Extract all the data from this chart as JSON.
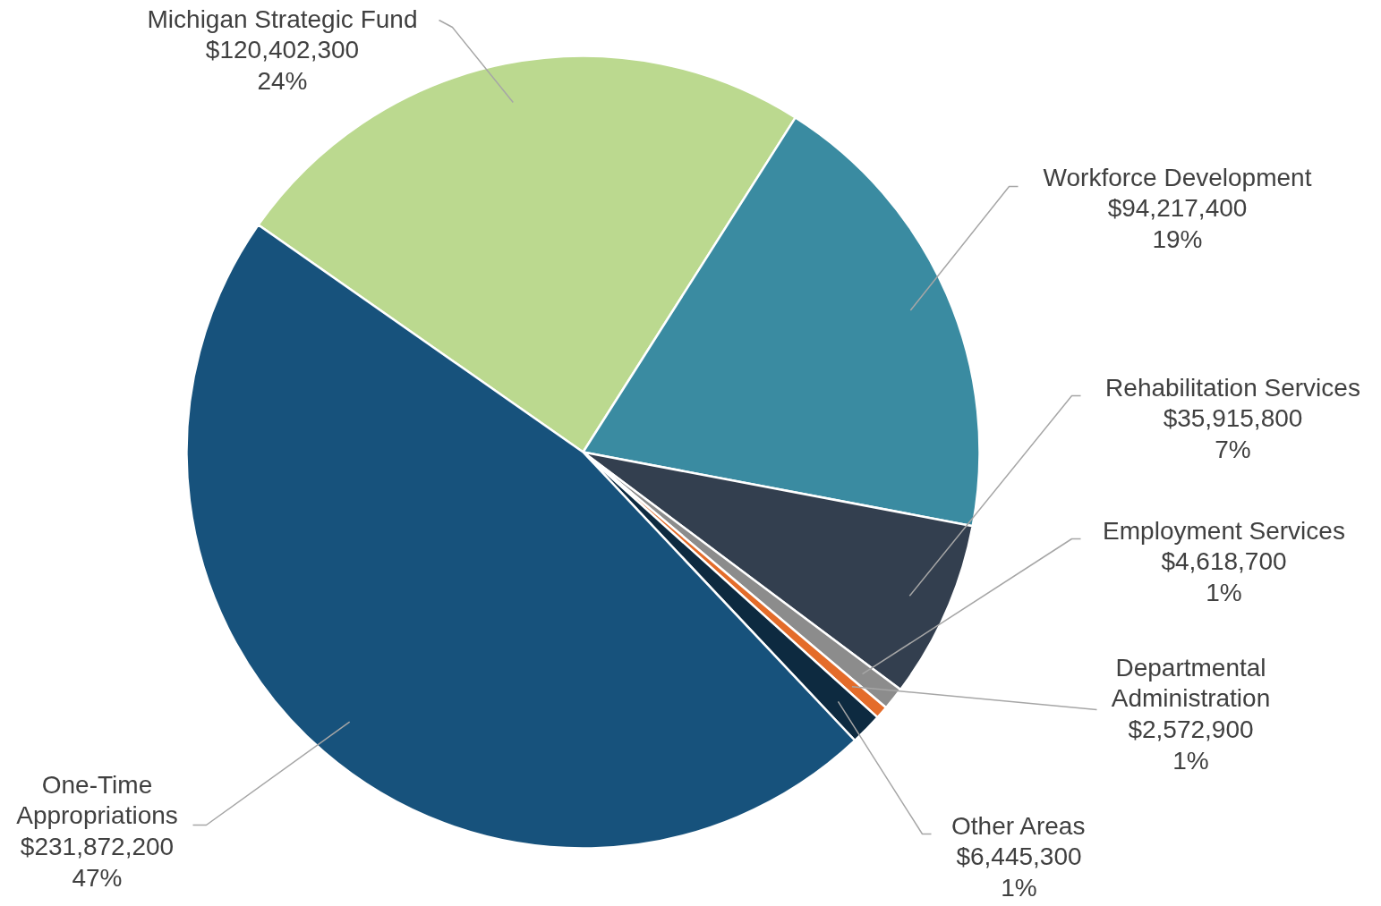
{
  "chart_data": {
    "type": "pie",
    "categories": [
      "Michigan Strategic Fund",
      "Workforce Development",
      "Rehabilitation Services",
      "Employment Services",
      "Departmental\nAdministration",
      "Other Areas",
      "One-Time\nAppropriations"
    ],
    "values": [
      120402300,
      94217400,
      35915800,
      4618700,
      2572900,
      6445300,
      231872200
    ],
    "value_labels": [
      "$120,402,300\n24%",
      "$94,217,400\n19%",
      "$35,915,800\n7%",
      "$4,618,700\n1%",
      "$2,572,900\n1%",
      "$6,445,300\n1%",
      "$231,872,200\n47%"
    ],
    "colors": [
      "#bbd98f",
      "#3a8ba1",
      "#333f4f",
      "#8c8c8c",
      "#e46c2a",
      "#0d2a40",
      "#17527c"
    ]
  }
}
